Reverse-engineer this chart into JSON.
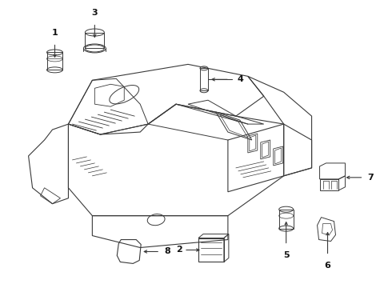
{
  "bg_color": "#ffffff",
  "line_color": "#3a3a3a",
  "label_color": "#111111",
  "figsize": [
    4.9,
    3.6
  ],
  "dpi": 100
}
